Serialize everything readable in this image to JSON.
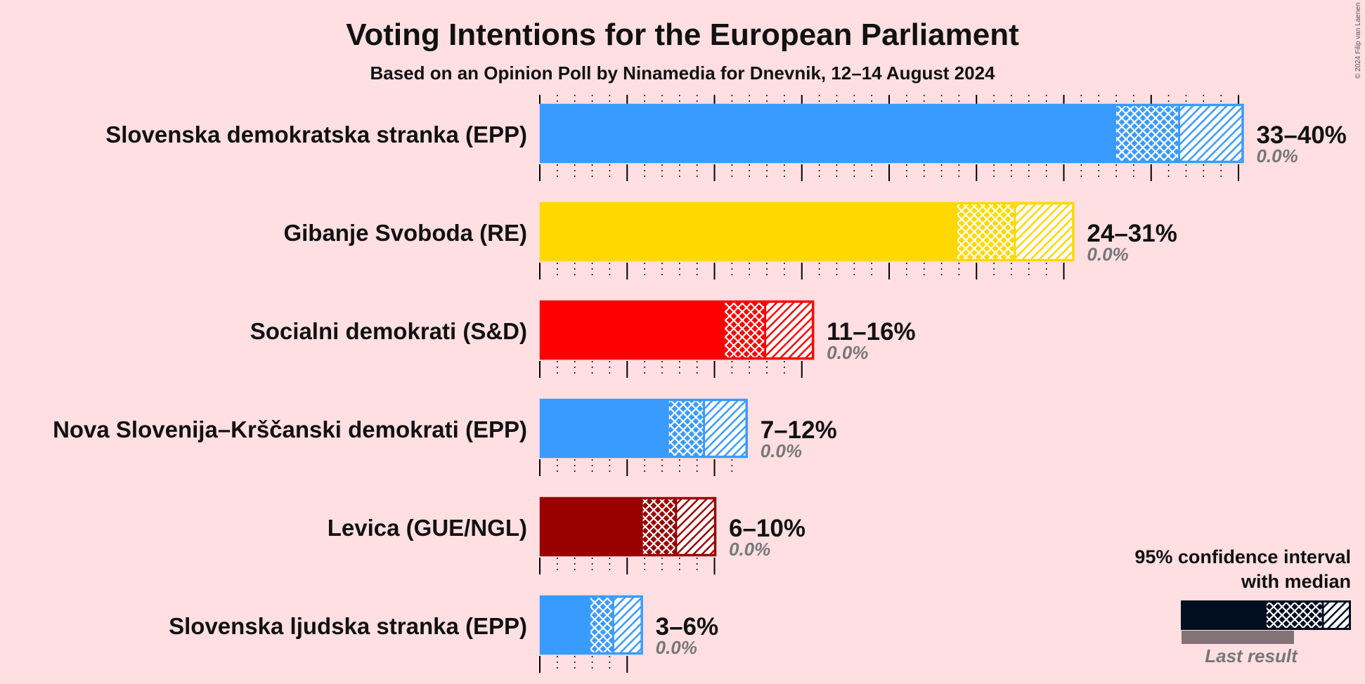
{
  "title": "Voting Intentions for the European Parliament",
  "subtitle": "Based on an Opinion Poll by Ninamedia for Dnevnik, 12–14 August 2024",
  "copyright": "© 2024 Filip van Laenen",
  "legend": {
    "line1": "95% confidence interval",
    "line2": "with median",
    "last_result": "Last result"
  },
  "chart_data": {
    "type": "bar",
    "orientation": "horizontal",
    "title": "Voting Intentions for the European Parliament",
    "subtitle": "Based on an Opinion Poll by Ninamedia for Dnevnik, 12–14 August 2024",
    "xlim": [
      0,
      40
    ],
    "unit": "%",
    "gridlines": {
      "major_every": 5,
      "minor_every": 1
    },
    "legend_position": "bottom-right",
    "series": [
      {
        "party": "Slovenska demokratska stranka (EPP)",
        "low": 33,
        "median": 36.6,
        "high": 40.3,
        "range_label": "33–40%",
        "last_result": 0.0,
        "last_label": "0.0%",
        "color": "#3A9BFF"
      },
      {
        "party": "Gibanje Svoboda (RE)",
        "low": 23.9,
        "median": 27.2,
        "high": 30.6,
        "range_label": "24–31%",
        "last_result": 0.0,
        "last_label": "0.0%",
        "color": "#FFD800"
      },
      {
        "party": "Socialni demokrati (S&D)",
        "low": 10.6,
        "median": 12.9,
        "high": 15.7,
        "range_label": "11–16%",
        "last_result": 0.0,
        "last_label": "0.0%",
        "color": "#FF0000"
      },
      {
        "party": "Nova Slovenija–Krščanski demokrati (EPP)",
        "low": 7.4,
        "median": 9.4,
        "high": 11.9,
        "range_label": "7–12%",
        "last_result": 0.0,
        "last_label": "0.0%",
        "color": "#3A9BFF"
      },
      {
        "party": "Levica (GUE/NGL)",
        "low": 5.9,
        "median": 7.8,
        "high": 10.1,
        "range_label": "6–10%",
        "last_result": 0.0,
        "last_label": "0.0%",
        "color": "#990000"
      },
      {
        "party": "Slovenska ljudska stranka (EPP)",
        "low": 2.9,
        "median": 4.2,
        "high": 5.9,
        "range_label": "3–6%",
        "last_result": 0.0,
        "last_label": "0.0%",
        "color": "#3A9BFF"
      }
    ]
  }
}
